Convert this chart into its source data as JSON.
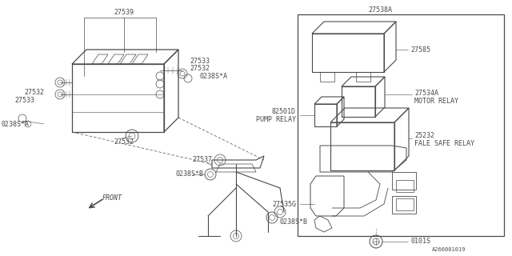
{
  "bg_color": "#ffffff",
  "line_color": "#4a4a4a",
  "fig_width": 6.4,
  "fig_height": 3.2,
  "dpi": 100,
  "xlim": [
    0,
    640
  ],
  "ylim": [
    0,
    320
  ],
  "font_size": 6.0,
  "font_family": "monospace"
}
